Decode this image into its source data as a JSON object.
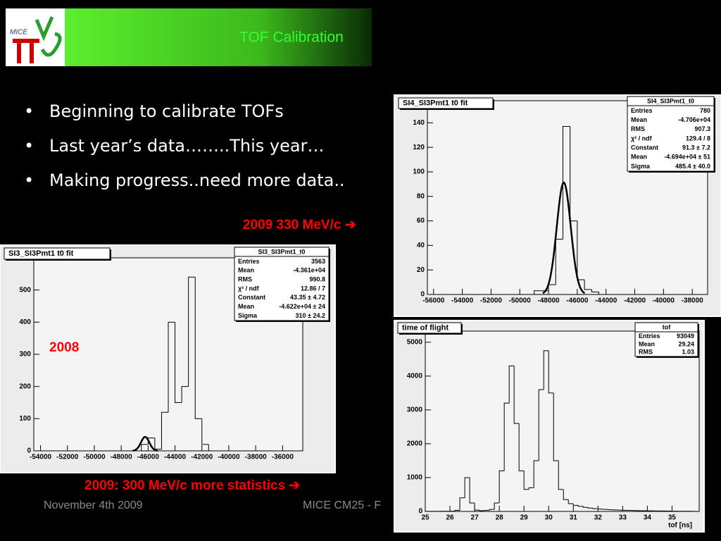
{
  "header": {
    "title": "TOF Calibration",
    "logo": "MICE"
  },
  "bullets": [
    "Beginning to calibrate TOFs",
    "Last year’s data……..This year…",
    "Making progress..need more data.."
  ],
  "annotations": [
    "2009 330 MeV/c ➔",
    "2008",
    "2009: 300 MeV/c more statistics ➔"
  ],
  "footer": {
    "date": "November 4th 2009",
    "event": "MICE CM25 - F"
  },
  "chart_data": [
    {
      "type": "histogram",
      "title": "SI3_SI3Pmt1  t0 fit",
      "stats": {
        "title": "SI3_SI3Pmt1_t0",
        "rows": [
          [
            "Entries",
            "3563"
          ],
          [
            "Mean",
            "-4.361e+04"
          ],
          [
            "RMS",
            "990.8"
          ],
          [
            "χ² / ndf",
            "12.86 / 7"
          ],
          [
            "Constant",
            "43.35 ± 4.72"
          ],
          [
            "Mean",
            "-4.622e+04 ± 24"
          ],
          [
            "Sigma",
            "310 ± 24.2"
          ]
        ]
      },
      "bins": [
        -54000,
        -53500,
        -53000,
        -52500,
        -52000,
        -51500,
        -51000,
        -50500,
        -50000,
        -49500,
        -49000,
        -48500,
        -48000,
        -47500,
        -47000,
        -46500,
        -46000,
        -45500,
        -45000,
        -44500,
        -44000,
        -43500,
        -43000,
        -42500,
        -42000,
        -41500,
        -41000,
        -40500,
        -40000,
        -39500,
        -39000,
        -38500,
        -38000,
        -37500,
        -37000,
        -36500,
        -36000,
        -35500,
        -35000
      ],
      "values": [
        0,
        0,
        0,
        0,
        0,
        0,
        0,
        0,
        0,
        0,
        0,
        0,
        0,
        0,
        0,
        20,
        40,
        5,
        120,
        400,
        150,
        200,
        540,
        100,
        20,
        0,
        0,
        0,
        0,
        0,
        0,
        0,
        0,
        0,
        0,
        0,
        0,
        0
      ],
      "fit": {
        "constant": 43.35,
        "mean": -46220,
        "sigma": 310
      },
      "xlim": [
        -54500,
        -34500
      ],
      "ylim": [
        0,
        600
      ],
      "xticks": [
        -54000,
        -52000,
        -50000,
        -48000,
        -46000,
        -44000,
        -42000,
        -40000,
        -38000,
        -36000
      ],
      "yticks": [
        0,
        100,
        200,
        300,
        400,
        500
      ]
    },
    {
      "type": "histogram",
      "title": "SI4_SI3Pmt1 t0 fit",
      "stats": {
        "title": "SI4_SI3Pmt1_t0",
        "rows": [
          [
            "Entries",
            "780"
          ],
          [
            "Mean",
            "-4.706e+04"
          ],
          [
            "RMS",
            "907.3"
          ],
          [
            "χ² / ndf",
            "129.4 / 8"
          ],
          [
            "Constant",
            "91.3 ± 7.2"
          ],
          [
            "Mean",
            "-4.694e+04 ± 51"
          ],
          [
            "Sigma",
            "485.4 ± 40.0"
          ]
        ]
      },
      "bins": [
        -56000,
        -55500,
        -55000,
        -54500,
        -54000,
        -53500,
        -53000,
        -52500,
        -52000,
        -51500,
        -51000,
        -50500,
        -50000,
        -49500,
        -49000,
        -48500,
        -48000,
        -47500,
        -47000,
        -46500,
        -46000,
        -45500,
        -45000,
        -44500,
        -44000,
        -43500,
        -43000,
        -42500,
        -42000,
        -41500,
        -41000,
        -40500,
        -40000,
        -39500,
        -39000,
        -38500,
        -38000,
        -37500,
        -37000
      ],
      "values": [
        0,
        0,
        0,
        0,
        0,
        0,
        0,
        0,
        0,
        0,
        0,
        0,
        0,
        0,
        3,
        3,
        8,
        45,
        137,
        60,
        12,
        4,
        2,
        0,
        0,
        0,
        0,
        0,
        0,
        0,
        0,
        0,
        0,
        0,
        0,
        0,
        0,
        0
      ],
      "fit": {
        "constant": 91.3,
        "mean": -46940,
        "sigma": 485.4
      },
      "xlim": [
        -56430,
        -36930
      ],
      "ylim": [
        0,
        158
      ],
      "xticks": [
        -56000,
        -54000,
        -52000,
        -50000,
        -48000,
        -46000,
        -44000,
        -42000,
        -40000,
        -38000
      ],
      "yticks": [
        0,
        20,
        40,
        60,
        80,
        100,
        120,
        140
      ]
    },
    {
      "type": "histogram",
      "title": "time of flight",
      "xlabel": "tof [ns]",
      "stats": {
        "title": "tof",
        "rows": [
          [
            "Entries",
            "93049"
          ],
          [
            "Mean",
            "29.24"
          ],
          [
            "RMS",
            "1.03"
          ]
        ]
      },
      "bins": [
        25,
        25.2,
        25.4,
        25.6,
        25.8,
        26,
        26.2,
        26.4,
        26.6,
        26.8,
        27,
        27.2,
        27.4,
        27.6,
        27.8,
        28,
        28.2,
        28.4,
        28.6,
        28.8,
        29,
        29.2,
        29.4,
        29.6,
        29.8,
        30,
        30.2,
        30.4,
        30.6,
        30.8,
        31,
        31.2,
        31.4,
        31.6,
        31.8,
        32,
        32.2,
        32.4,
        32.6,
        32.8,
        33,
        33.2,
        33.4,
        33.6,
        33.8,
        34,
        34.2,
        34.4,
        34.6,
        34.8,
        35,
        35.2,
        35.4,
        35.6,
        35.8,
        36
      ],
      "values": [
        2,
        3,
        3,
        4,
        5,
        8,
        30,
        400,
        1000,
        250,
        40,
        20,
        30,
        60,
        250,
        1200,
        3200,
        4300,
        2600,
        1200,
        650,
        700,
        1500,
        3600,
        4750,
        3500,
        1500,
        650,
        350,
        230,
        180,
        150,
        120,
        100,
        80,
        70,
        60,
        50,
        45,
        40,
        35,
        30,
        25,
        22,
        20,
        18,
        15,
        13,
        12,
        10,
        8,
        6,
        5,
        4,
        3
      ],
      "xlim": [
        25,
        36.1
      ],
      "ylim": [
        0,
        5330
      ],
      "xticks": [
        25,
        26,
        27,
        28,
        29,
        30,
        31,
        32,
        33,
        34,
        35
      ],
      "yticks": [
        0,
        1000,
        2000,
        3000,
        4000,
        5000
      ]
    }
  ]
}
